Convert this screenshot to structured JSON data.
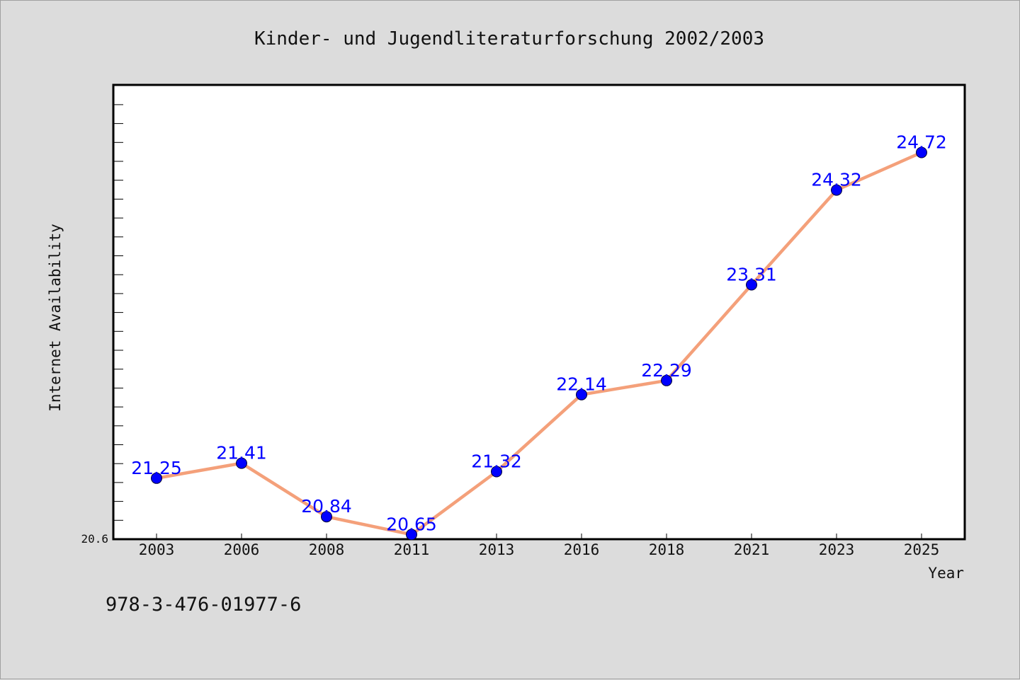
{
  "chart_data": {
    "type": "line",
    "title": "Kinder- und Jugendliteraturforschung 2002/2003",
    "xlabel": "Year",
    "ylabel": "Internet Availability",
    "categories": [
      "2003",
      "2006",
      "2008",
      "2011",
      "2013",
      "2016",
      "2018",
      "2021",
      "2023",
      "2025"
    ],
    "series": [
      {
        "values": [
          21.25,
          21.41,
          20.84,
          20.65,
          21.32,
          22.14,
          22.29,
          23.31,
          24.32,
          24.72
        ]
      }
    ],
    "data_labels": [
      "21.25",
      "21.41",
      "20.84",
      "20.65",
      "21.32",
      "22.14",
      "22.29",
      "23.31",
      "24.32",
      "24.72"
    ],
    "y_min_label": "20.6",
    "ylim": [
      20.6,
      25.44
    ],
    "grid": false,
    "legend": "none",
    "colors": {
      "line": "#f4a07a",
      "marker": "#0000ff",
      "data_label": "#0000ff",
      "plot_background": "#ffffff",
      "page_background": "#dcdcdc"
    }
  },
  "footer": {
    "isbn": "978-3-476-01977-6"
  }
}
